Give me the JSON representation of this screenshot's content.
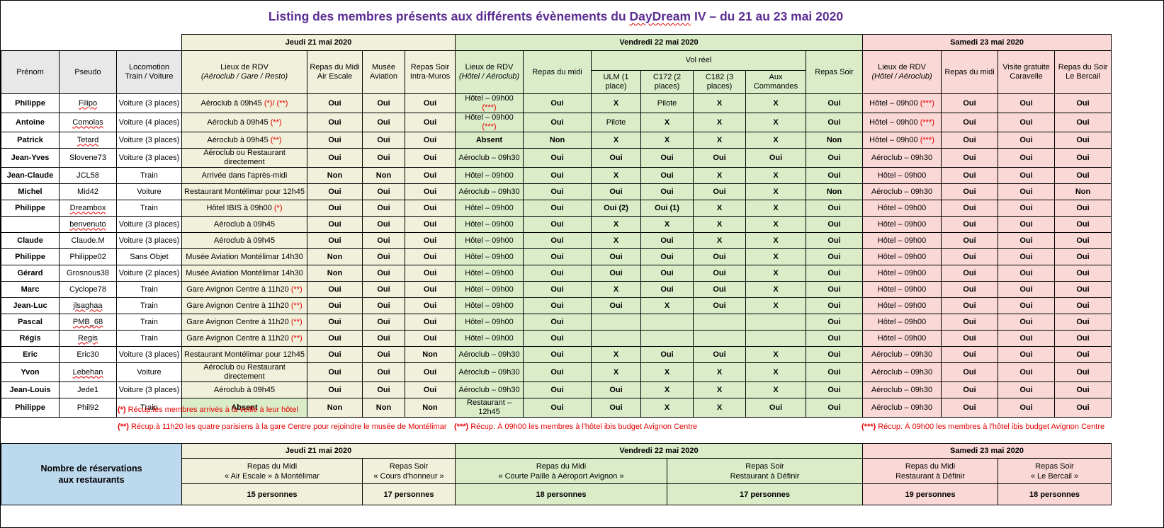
{
  "title": {
    "pre": "Listing des membres présents aux différents évènements du ",
    "word": "DayDream",
    "post": " IV – du 21 au 23 mai 2020"
  },
  "days": {
    "jeudi": "Jeudi 21 mai 2020",
    "vendredi": "Vendredi 22 mai 2020",
    "samedi": "Samedi 23 mai 2020"
  },
  "header": {
    "prenom": "Prénom",
    "pseudo": "Pseudo",
    "loco1": "Locomotion",
    "loco2": "Train / Voiture",
    "jeudi": {
      "rdv1": "Lieux de RDV",
      "rdv2": "(Aéroclub / Gare / Resto)",
      "midi1": "Repas du Midi",
      "midi2": "Air Escale",
      "musee1": "Musée",
      "musee2": "Aviation",
      "soir1": "Repas Soir",
      "soir2": "Intra-Muros"
    },
    "vendredi": {
      "rdv1": "Lieux de RDV",
      "rdv2": "(Hôtel / Aéroclub)",
      "midi": "Repas du midi",
      "vol": "Vol réel",
      "vol_cols": [
        "ULM (1 place)",
        "C172 (2 places)",
        "C182 (3 places)",
        "Aux Commandes"
      ],
      "soir": "Repas Soir"
    },
    "samedi": {
      "rdv1": "Lieux de RDV",
      "rdv2": "(Hôtel / Aéroclub)",
      "midi": "Repas du midi",
      "visite1": "Visite gratuite",
      "visite2": "Caravelle",
      "soir1": "Repas du Soir",
      "soir2": "Le Bercail"
    }
  },
  "rows": [
    {
      "prenom": "Philippe",
      "pseudo": "Filipo",
      "misspelled": true,
      "loco": "Voiture (3 places)",
      "jeudi": {
        "rdv": "Aéroclub à 09h45",
        "note": "(*)/ (**)",
        "midi": "Oui",
        "musee": "Oui",
        "soir": "Oui"
      },
      "vendredi": {
        "rdv": "Hôtel – 09h00",
        "note": "(***)",
        "midi": "Oui",
        "ulm": "X",
        "c172": "Pilote",
        "c182": "X",
        "cmd": "X",
        "soir": "Oui"
      },
      "samedi": {
        "rdv": "Hôtel – 09h00",
        "note": "(***)",
        "midi": "Oui",
        "visite": "Oui",
        "soir": "Oui"
      }
    },
    {
      "prenom": "Antoine",
      "pseudo": "Comolas",
      "misspelled": true,
      "loco": "Voiture (4 places)",
      "jeudi": {
        "rdv": "Aéroclub à 09h45",
        "note": "(**)",
        "midi": "Oui",
        "musee": "Oui",
        "soir": "Oui"
      },
      "vendredi": {
        "rdv": "Hôtel – 09h00",
        "note": "(***)",
        "midi": "Oui",
        "ulm": "Pilote",
        "c172": "X",
        "c182": "X",
        "cmd": "X",
        "soir": "Oui"
      },
      "samedi": {
        "rdv": "Hôtel – 09h00",
        "note": "(***)",
        "midi": "Oui",
        "visite": "Oui",
        "soir": "Oui"
      }
    },
    {
      "prenom": "Patrick",
      "pseudo": "Tetard",
      "misspelled": true,
      "loco": "Voiture (3 places)",
      "jeudi": {
        "rdv": "Aéroclub à 09h45",
        "note": "(**)",
        "midi": "Oui",
        "musee": "Oui",
        "soir": "Oui"
      },
      "vendredi": {
        "rdv": "Absent",
        "note": "",
        "midi": "Non",
        "ulm": "X",
        "c172": "X",
        "c182": "X",
        "cmd": "X",
        "soir": "Non"
      },
      "samedi": {
        "rdv": "Hôtel – 09h00",
        "note": "(***)",
        "midi": "Oui",
        "visite": "Oui",
        "soir": "Oui"
      }
    },
    {
      "prenom": "Jean-Yves",
      "pseudo": "Slovene73",
      "misspelled": false,
      "loco": "Voiture (3 places)",
      "jeudi": {
        "rdv": "Aéroclub ou Restaurant directement",
        "note": "",
        "midi": "Oui",
        "musee": "Oui",
        "soir": "Oui"
      },
      "vendredi": {
        "rdv": "Aéroclub – 09h30",
        "note": "",
        "midi": "Oui",
        "ulm": "Oui",
        "c172": "Oui",
        "c182": "Oui",
        "cmd": "Oui",
        "soir": "Oui"
      },
      "samedi": {
        "rdv": "Aéroclub – 09h30",
        "note": "",
        "midi": "Oui",
        "visite": "Oui",
        "soir": "Oui"
      }
    },
    {
      "prenom": "Jean-Claude",
      "pseudo": "JCL58",
      "misspelled": false,
      "loco": "Train",
      "jeudi": {
        "rdv": "Arrivée dans l'après-midi",
        "note": "",
        "midi": "Non",
        "musee": "Non",
        "soir": "Oui"
      },
      "vendredi": {
        "rdv": "Hôtel – 09h00",
        "note": "",
        "midi": "Oui",
        "ulm": "X",
        "c172": "Oui",
        "c182": "X",
        "cmd": "X",
        "soir": "Oui"
      },
      "samedi": {
        "rdv": "Hôtel – 09h00",
        "note": "",
        "midi": "Oui",
        "visite": "Oui",
        "soir": "Oui"
      }
    },
    {
      "prenom": "Michel",
      "pseudo": "Mid42",
      "misspelled": false,
      "loco": "Voiture",
      "jeudi": {
        "rdv": "Restaurant Montélimar pour 12h45",
        "note": "",
        "midi": "Oui",
        "musee": "Oui",
        "soir": "Oui"
      },
      "vendredi": {
        "rdv": "Aéroclub – 09h30",
        "note": "",
        "midi": "Oui",
        "ulm": "Oui",
        "c172": "Oui",
        "c182": "Oui",
        "cmd": "X",
        "soir": "Non"
      },
      "samedi": {
        "rdv": "Aéroclub – 09h30",
        "note": "",
        "midi": "Oui",
        "visite": "Oui",
        "soir": "Non"
      }
    },
    {
      "prenom": "Philippe",
      "pseudo": "Dreambox",
      "misspelled": true,
      "loco": "Train",
      "jeudi": {
        "rdv": "Hôtel IBIS à 09h00",
        "note": "(*)",
        "midi": "Oui",
        "musee": "Oui",
        "soir": "Oui"
      },
      "vendredi": {
        "rdv": "Hôtel – 09h00",
        "note": "",
        "midi": "Oui",
        "ulm": "Oui (2)",
        "c172": "Oui (1)",
        "c182": "X",
        "cmd": "X",
        "soir": "Oui"
      },
      "samedi": {
        "rdv": "Hôtel – 09h00",
        "note": "",
        "midi": "Oui",
        "visite": "Oui",
        "soir": "Oui"
      }
    },
    {
      "prenom": "",
      "pseudo": "benvenuto",
      "misspelled": true,
      "loco": "Voiture (3 places)",
      "jeudi": {
        "rdv": "Aéroclub à 09h45",
        "note": "",
        "midi": "Oui",
        "musee": "Oui",
        "soir": "Oui"
      },
      "vendredi": {
        "rdv": "Hôtel – 09h00",
        "note": "",
        "midi": "Oui",
        "ulm": "X",
        "c172": "X",
        "c182": "X",
        "cmd": "X",
        "soir": "Oui"
      },
      "samedi": {
        "rdv": "Hôtel – 09h00",
        "note": "",
        "midi": "Oui",
        "visite": "Oui",
        "soir": "Oui"
      }
    },
    {
      "prenom": "Claude",
      "pseudo": "Claude.M",
      "misspelled": false,
      "loco": "Voiture (3 places)",
      "jeudi": {
        "rdv": "Aéroclub à 09h45",
        "note": "",
        "midi": "Oui",
        "musee": "Oui",
        "soir": "Oui"
      },
      "vendredi": {
        "rdv": "Hôtel – 09h00",
        "note": "",
        "midi": "Oui",
        "ulm": "X",
        "c172": "Oui",
        "c182": "X",
        "cmd": "X",
        "soir": "Oui"
      },
      "samedi": {
        "rdv": "Hôtel – 09h00",
        "note": "",
        "midi": "Oui",
        "visite": "Oui",
        "soir": "Oui"
      }
    },
    {
      "prenom": "Philippe",
      "pseudo": "Philippe02",
      "misspelled": false,
      "loco": "Sans Objet",
      "jeudi": {
        "rdv": "Musée Aviation Montélimar 14h30",
        "note": "",
        "midi": "Non",
        "musee": "Oui",
        "soir": "Oui"
      },
      "vendredi": {
        "rdv": "Hôtel – 09h00",
        "note": "",
        "midi": "Oui",
        "ulm": "Oui",
        "c172": "Oui",
        "c182": "Oui",
        "cmd": "X",
        "soir": "Oui"
      },
      "samedi": {
        "rdv": "Hôtel – 09h00",
        "note": "",
        "midi": "Oui",
        "visite": "Oui",
        "soir": "Oui"
      }
    },
    {
      "prenom": "Gérard",
      "pseudo": "Grosnous38",
      "misspelled": false,
      "loco": "Voiture (2 places)",
      "jeudi": {
        "rdv": "Musée Aviation Montélimar 14h30",
        "note": "",
        "midi": "Non",
        "musee": "Oui",
        "soir": "Oui"
      },
      "vendredi": {
        "rdv": "Hôtel – 09h00",
        "note": "",
        "midi": "Oui",
        "ulm": "Oui",
        "c172": "Oui",
        "c182": "Oui",
        "cmd": "X",
        "soir": "Oui"
      },
      "samedi": {
        "rdv": "Hôtel – 09h00",
        "note": "",
        "midi": "Oui",
        "visite": "Oui",
        "soir": "Oui"
      }
    },
    {
      "prenom": "Marc",
      "pseudo": "Cyclope78",
      "misspelled": false,
      "loco": "Train",
      "jeudi": {
        "rdv": "Gare Avignon Centre à 11h20",
        "note": "(**)",
        "midi": "Oui",
        "musee": "Oui",
        "soir": "Oui"
      },
      "vendredi": {
        "rdv": "Hôtel – 09h00",
        "note": "",
        "midi": "Oui",
        "ulm": "X",
        "c172": "Oui",
        "c182": "Oui",
        "cmd": "X",
        "soir": "Oui"
      },
      "samedi": {
        "rdv": "Hôtel – 09h00",
        "note": "",
        "midi": "Oui",
        "visite": "Oui",
        "soir": "Oui"
      }
    },
    {
      "prenom": "Jean-Luc",
      "pseudo": "jlsaghaa",
      "misspelled": true,
      "loco": "Train",
      "jeudi": {
        "rdv": "Gare Avignon Centre à 11h20",
        "note": "(**)",
        "midi": "Oui",
        "musee": "Oui",
        "soir": "Oui"
      },
      "vendredi": {
        "rdv": "Hôtel – 09h00",
        "note": "",
        "midi": "Oui",
        "ulm": "Oui",
        "c172": "X",
        "c182": "Oui",
        "cmd": "X",
        "soir": "Oui"
      },
      "samedi": {
        "rdv": "Hôtel – 09h00",
        "note": "",
        "midi": "Oui",
        "visite": "Oui",
        "soir": "Oui"
      }
    },
    {
      "prenom": "Pascal",
      "pseudo": "PMB_68",
      "misspelled": true,
      "loco": "Train",
      "jeudi": {
        "rdv": "Gare Avignon Centre à 11h20",
        "note": "(**)",
        "midi": "Oui",
        "musee": "Oui",
        "soir": "Oui"
      },
      "vendredi": {
        "rdv": "Hôtel – 09h00",
        "note": "",
        "midi": "Oui",
        "ulm": "",
        "c172": "",
        "c182": "",
        "cmd": "",
        "soir": "Oui"
      },
      "samedi": {
        "rdv": "Hôtel – 09h00",
        "note": "",
        "midi": "Oui",
        "visite": "Oui",
        "soir": "Oui"
      }
    },
    {
      "prenom": "Régis",
      "pseudo": "Regis",
      "misspelled": true,
      "loco": "Train",
      "jeudi": {
        "rdv": "Gare Avignon Centre à 11h20",
        "note": "(**)",
        "midi": "Oui",
        "musee": "Oui",
        "soir": "Oui"
      },
      "vendredi": {
        "rdv": "Hôtel – 09h00",
        "note": "",
        "midi": "Oui",
        "ulm": "",
        "c172": "",
        "c182": "",
        "cmd": "",
        "soir": "Oui"
      },
      "samedi": {
        "rdv": "Hôtel – 09h00",
        "note": "",
        "midi": "Oui",
        "visite": "Oui",
        "soir": "Oui"
      }
    },
    {
      "prenom": "Eric",
      "pseudo": "Eric30",
      "misspelled": false,
      "loco": "Voiture (3 places)",
      "jeudi": {
        "rdv": "Restaurant Montélimar pour 12h45",
        "note": "",
        "midi": "Oui",
        "musee": "Oui",
        "soir": "Non"
      },
      "vendredi": {
        "rdv": "Aéroclub – 09h30",
        "note": "",
        "midi": "Oui",
        "ulm": "X",
        "c172": "Oui",
        "c182": "Oui",
        "cmd": "X",
        "soir": "Oui"
      },
      "samedi": {
        "rdv": "Aéroclub – 09h30",
        "note": "",
        "midi": "Oui",
        "visite": "Oui",
        "soir": "Oui"
      }
    },
    {
      "prenom": "Yvon",
      "pseudo": "Lebehan",
      "misspelled": true,
      "loco": "Voiture",
      "jeudi": {
        "rdv": "Aéroclub ou Restaurant directement",
        "note": "",
        "midi": "Oui",
        "musee": "Oui",
        "soir": "Oui"
      },
      "vendredi": {
        "rdv": "Aéroclub – 09h30",
        "note": "",
        "midi": "Oui",
        "ulm": "X",
        "c172": "X",
        "c182": "X",
        "cmd": "X",
        "soir": "Oui"
      },
      "samedi": {
        "rdv": "Aéroclub – 09h30",
        "note": "",
        "midi": "Oui",
        "visite": "Oui",
        "soir": "Oui"
      }
    },
    {
      "prenom": "Jean-Louis",
      "pseudo": "Jede1",
      "misspelled": false,
      "loco": "Voiture (3 places)",
      "jeudi": {
        "rdv": "Aéroclub à 09h45",
        "note": "",
        "midi": "Oui",
        "musee": "Oui",
        "soir": "Oui"
      },
      "vendredi": {
        "rdv": "Aéroclub – 09h30",
        "note": "",
        "midi": "Oui",
        "ulm": "Oui",
        "c172": "X",
        "c182": "X",
        "cmd": "X",
        "soir": "Oui"
      },
      "samedi": {
        "rdv": "Aéroclub – 09h30",
        "note": "",
        "midi": "Oui",
        "visite": "Oui",
        "soir": "Oui"
      }
    },
    {
      "prenom": "Philippe",
      "pseudo": "Phil92",
      "misspelled": false,
      "loco": "Train",
      "jeudi": {
        "rdv": "Absent",
        "note": "",
        "rdv_bg": "green",
        "midi": "Non",
        "musee": "Non",
        "soir": "Non"
      },
      "vendredi": {
        "rdv": "Restaurant – 12h45",
        "note": "",
        "midi": "Oui",
        "ulm": "Oui",
        "c172": "X",
        "c182": "X",
        "cmd": "Oui",
        "soir": "Oui"
      },
      "samedi": {
        "rdv": "Aéroclub – 09h30",
        "note": "",
        "midi": "Oui",
        "visite": "Oui",
        "soir": "Oui"
      }
    }
  ],
  "footnotes": [
    {
      "marker": "(*)",
      "text": "Récup.les membres arrivés à la veille à leur hôtel"
    },
    {
      "marker": "(**)",
      "text": "Récup.à 11h20 les quatre parisiens à la gare Centre pour rejoindre le musée de Montélimar"
    },
    {
      "marker": "(***)",
      "text": "Récup. À 09h00 les membres à l'hôtel ibis budget Avignon Centre"
    },
    {
      "marker": "(***)",
      "text": "Récup. À 09h00 les membres à l'hôtel ibis budget Avignon Centre"
    }
  ],
  "summary": {
    "label1": "Nombre de réservations",
    "label2": "aux restaurants",
    "days": [
      "Jeudi 21 mai 2020",
      "Vendredi 22 mai 2020",
      "Samedi 23 mai 2020"
    ],
    "meals": [
      {
        "line1": "Repas du Midi",
        "line2": "« Air Escale » à Montélimar",
        "count": "15 personnes"
      },
      {
        "line1": "Repas Soir",
        "line2": "« Cours d'honneur »",
        "count": "17 personnes"
      },
      {
        "line1": "Repas du Midi",
        "line2": "« Courte Paille à Aéroport Avignon »",
        "count": "18 personnes"
      },
      {
        "line1": "Repas Soir",
        "line2": "Restaurant à Définir",
        "count": "17 personnes"
      },
      {
        "line1": "Repas du Midi",
        "line2": "Restaurant à Définir",
        "count": "19 personnes"
      },
      {
        "line1": "Repas Soir",
        "line2": "« Le Bercail »",
        "count": "18 personnes"
      }
    ]
  },
  "colors": {
    "title_purple": "#5B2D91",
    "jeudi_bg": "#F0F0DB",
    "vendredi_bg": "#DBECC9",
    "samedi_bg": "#F9D8D6",
    "header_gray": "#E8E8E8",
    "summary_label_blue": "#BDD9EE",
    "oui_green": "#347B34",
    "alert_red": "#E60000"
  }
}
